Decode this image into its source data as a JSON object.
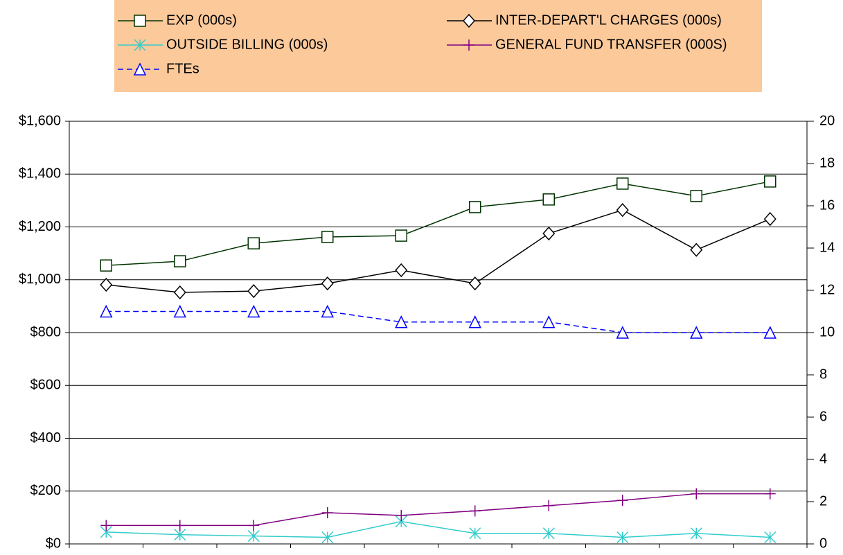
{
  "chart_data": {
    "type": "line",
    "categories": [
      null,
      null,
      null,
      null,
      null,
      null,
      null,
      null,
      null,
      null
    ],
    "series": [
      {
        "name": "EXP (000s)",
        "color": "#003300",
        "marker": "square",
        "values": [
          1054,
          1070,
          1138,
          1162,
          1167,
          1275,
          1304,
          1364,
          1317,
          1372
        ]
      },
      {
        "name": "INTER-DEPART'L CHARGES (000s)",
        "color": "#000000",
        "marker": "diamond",
        "values": [
          981,
          952,
          957,
          986,
          1036,
          986,
          1175,
          1264,
          1113,
          1230
        ]
      },
      {
        "name": "OUTSIDE BILLING (000s)",
        "color": "#33cccc",
        "marker": "asterisk",
        "values": [
          45,
          35,
          30,
          25,
          85,
          40,
          40,
          25,
          40,
          25
        ]
      },
      {
        "name": "GENERAL FUND TRANSFER (000S)",
        "color": "#800080",
        "marker": "plus",
        "values": [
          70,
          70,
          70,
          118,
          108,
          125,
          145,
          165,
          190,
          190
        ]
      },
      {
        "name": "FTEs",
        "color": "#0000ff",
        "marker": "triangle",
        "dashed": true,
        "axis": "y2",
        "values": [
          11,
          11,
          11,
          11,
          10.5,
          10.5,
          10.5,
          10,
          10,
          10
        ]
      }
    ],
    "ylim": [
      0,
      1600
    ],
    "yticks": [
      {
        "value": 0,
        "label": "$0"
      },
      {
        "value": 200,
        "label": "$200"
      },
      {
        "value": 400,
        "label": "$400"
      },
      {
        "value": 600,
        "label": "$600"
      },
      {
        "value": 800,
        "label": "$800"
      },
      {
        "value": 1000,
        "label": "$1,000"
      },
      {
        "value": 1200,
        "label": "$1,200"
      },
      {
        "value": 1400,
        "label": "$1,400"
      },
      {
        "value": 1600,
        "label": "$1,600"
      }
    ],
    "y2lim": [
      0,
      20
    ],
    "y2ticks": [
      0,
      2,
      4,
      6,
      8,
      10,
      12,
      14,
      16,
      18,
      20
    ],
    "grid": true,
    "legend": "top"
  }
}
